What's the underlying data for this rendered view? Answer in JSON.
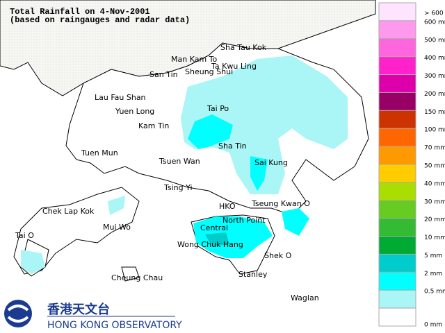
{
  "header": {
    "title": "Total Rainfall on 4-Nov-2001",
    "subtitle": "(based on raingauges and radar data)"
  },
  "places": [
    "Sha Tau Kok",
    "Man Kam To",
    "Ta Kwu Ling",
    "San Tin",
    "Sheung Shui",
    "Lau Fau Shan",
    "Yuen Long",
    "Tai Po",
    "Kam Tin",
    "Sha Tin",
    "Tuen Mun",
    "Tsuen Wan",
    "Sai Kung",
    "Tsing Yi",
    "HKO",
    "Tseung Kwan O",
    "Chek Lap Kok",
    "Mui Wo",
    "Central",
    "North Point",
    "Tai O",
    "Wong Chuk Hang",
    "Shek O",
    "Cheung Chau",
    "Stanley",
    "Waglan"
  ],
  "legend": {
    "items": [
      {
        "label": "> 600 mm",
        "color": "#ffe4ff"
      },
      {
        "label": "600 mm",
        "color": "#ff99ee"
      },
      {
        "label": "500 mm",
        "color": "#ff66dd"
      },
      {
        "label": "400 mm",
        "color": "#ff22cc"
      },
      {
        "label": "300 mm",
        "color": "#dd00aa"
      },
      {
        "label": "200 mm",
        "color": "#990066"
      },
      {
        "label": "150 mm",
        "color": "#cc3300"
      },
      {
        "label": "100 mm",
        "color": "#ff6600"
      },
      {
        "label": "70 mm",
        "color": "#ff9900"
      },
      {
        "label": "50 mm",
        "color": "#ffcc00"
      },
      {
        "label": "40 mm",
        "color": "#aadd00"
      },
      {
        "label": "30 mm",
        "color": "#66cc22"
      },
      {
        "label": "20 mm",
        "color": "#33bb33"
      },
      {
        "label": "10 mm",
        "color": "#00aa33"
      },
      {
        "label": "5 mm",
        "color": "#00cccc"
      },
      {
        "label": "2 mm",
        "color": "#00ffff"
      },
      {
        "label": "0.5 mm",
        "color": "#aaf5f5"
      },
      {
        "label": "0 mm",
        "color": "#ffffff"
      }
    ]
  },
  "logo": {
    "chinese": "香港天文台",
    "english": "HONG KONG OBSERVATORY"
  }
}
